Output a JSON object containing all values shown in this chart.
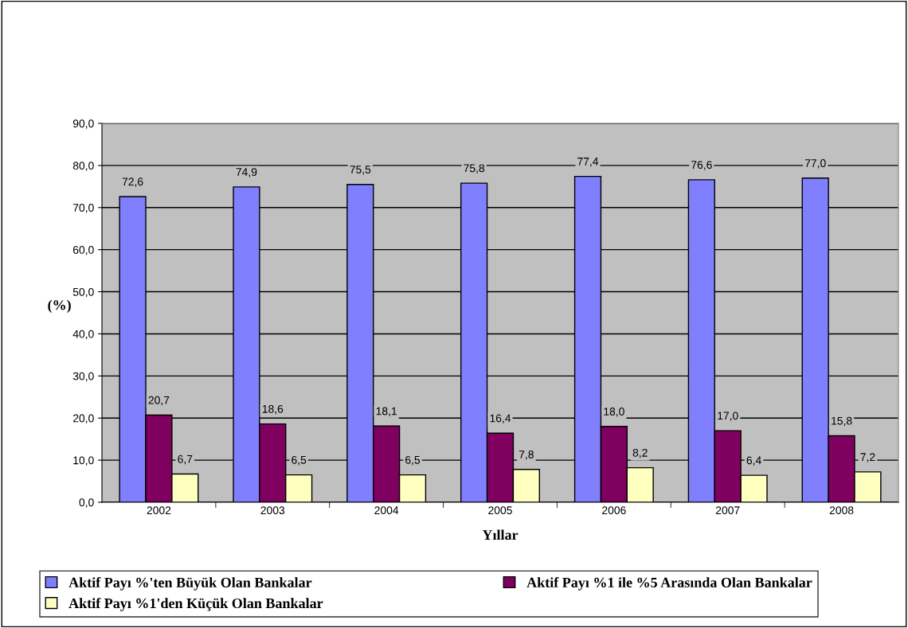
{
  "chart_data": {
    "type": "bar",
    "xlabel": "Yıllar",
    "ylabel": "(%)",
    "categories": [
      "2002",
      "2003",
      "2004",
      "2005",
      "2006",
      "2007",
      "2008"
    ],
    "series": [
      {
        "name": "Aktif Payı %'ten Büyük Olan Bankalar",
        "color": "#8080ff",
        "values": [
          72.6,
          74.9,
          75.5,
          75.8,
          77.4,
          76.6,
          77.0
        ],
        "value_labels": [
          "72,6",
          "74,9",
          "75,5",
          "75,8",
          "77,4",
          "76,6",
          "77,0"
        ]
      },
      {
        "name": "Aktif Payı %1 ile %5 Arasında Olan Bankalar",
        "color": "#800060",
        "values": [
          20.7,
          18.6,
          18.1,
          16.4,
          18.0,
          17.0,
          15.8
        ],
        "value_labels": [
          "20,7",
          "18,6",
          "18,1",
          "16,4",
          "18,0",
          "17,0",
          "15,8"
        ]
      },
      {
        "name": "Aktif Payı %1'den Küçük Olan Bankalar",
        "color": "#ffffc0",
        "values": [
          6.7,
          6.5,
          6.5,
          7.8,
          8.2,
          6.4,
          7.2
        ],
        "value_labels": [
          "6,7",
          "6,5",
          "6,5",
          "7,8",
          "8,2",
          "6,4",
          "7,2"
        ]
      }
    ],
    "ylim": [
      0,
      90
    ],
    "yticks": [
      {
        "value": 0,
        "label": "0,0"
      },
      {
        "value": 10,
        "label": "10,0"
      },
      {
        "value": 20,
        "label": "20,0"
      },
      {
        "value": 30,
        "label": "30,0"
      },
      {
        "value": 40,
        "label": "40,0"
      },
      {
        "value": 50,
        "label": "50,0"
      },
      {
        "value": 60,
        "label": "60,0"
      },
      {
        "value": 70,
        "label": "70,0"
      },
      {
        "value": 80,
        "label": "80,0"
      },
      {
        "value": 90,
        "label": "90,0"
      }
    ],
    "grid": "y",
    "legend": "bottom"
  }
}
